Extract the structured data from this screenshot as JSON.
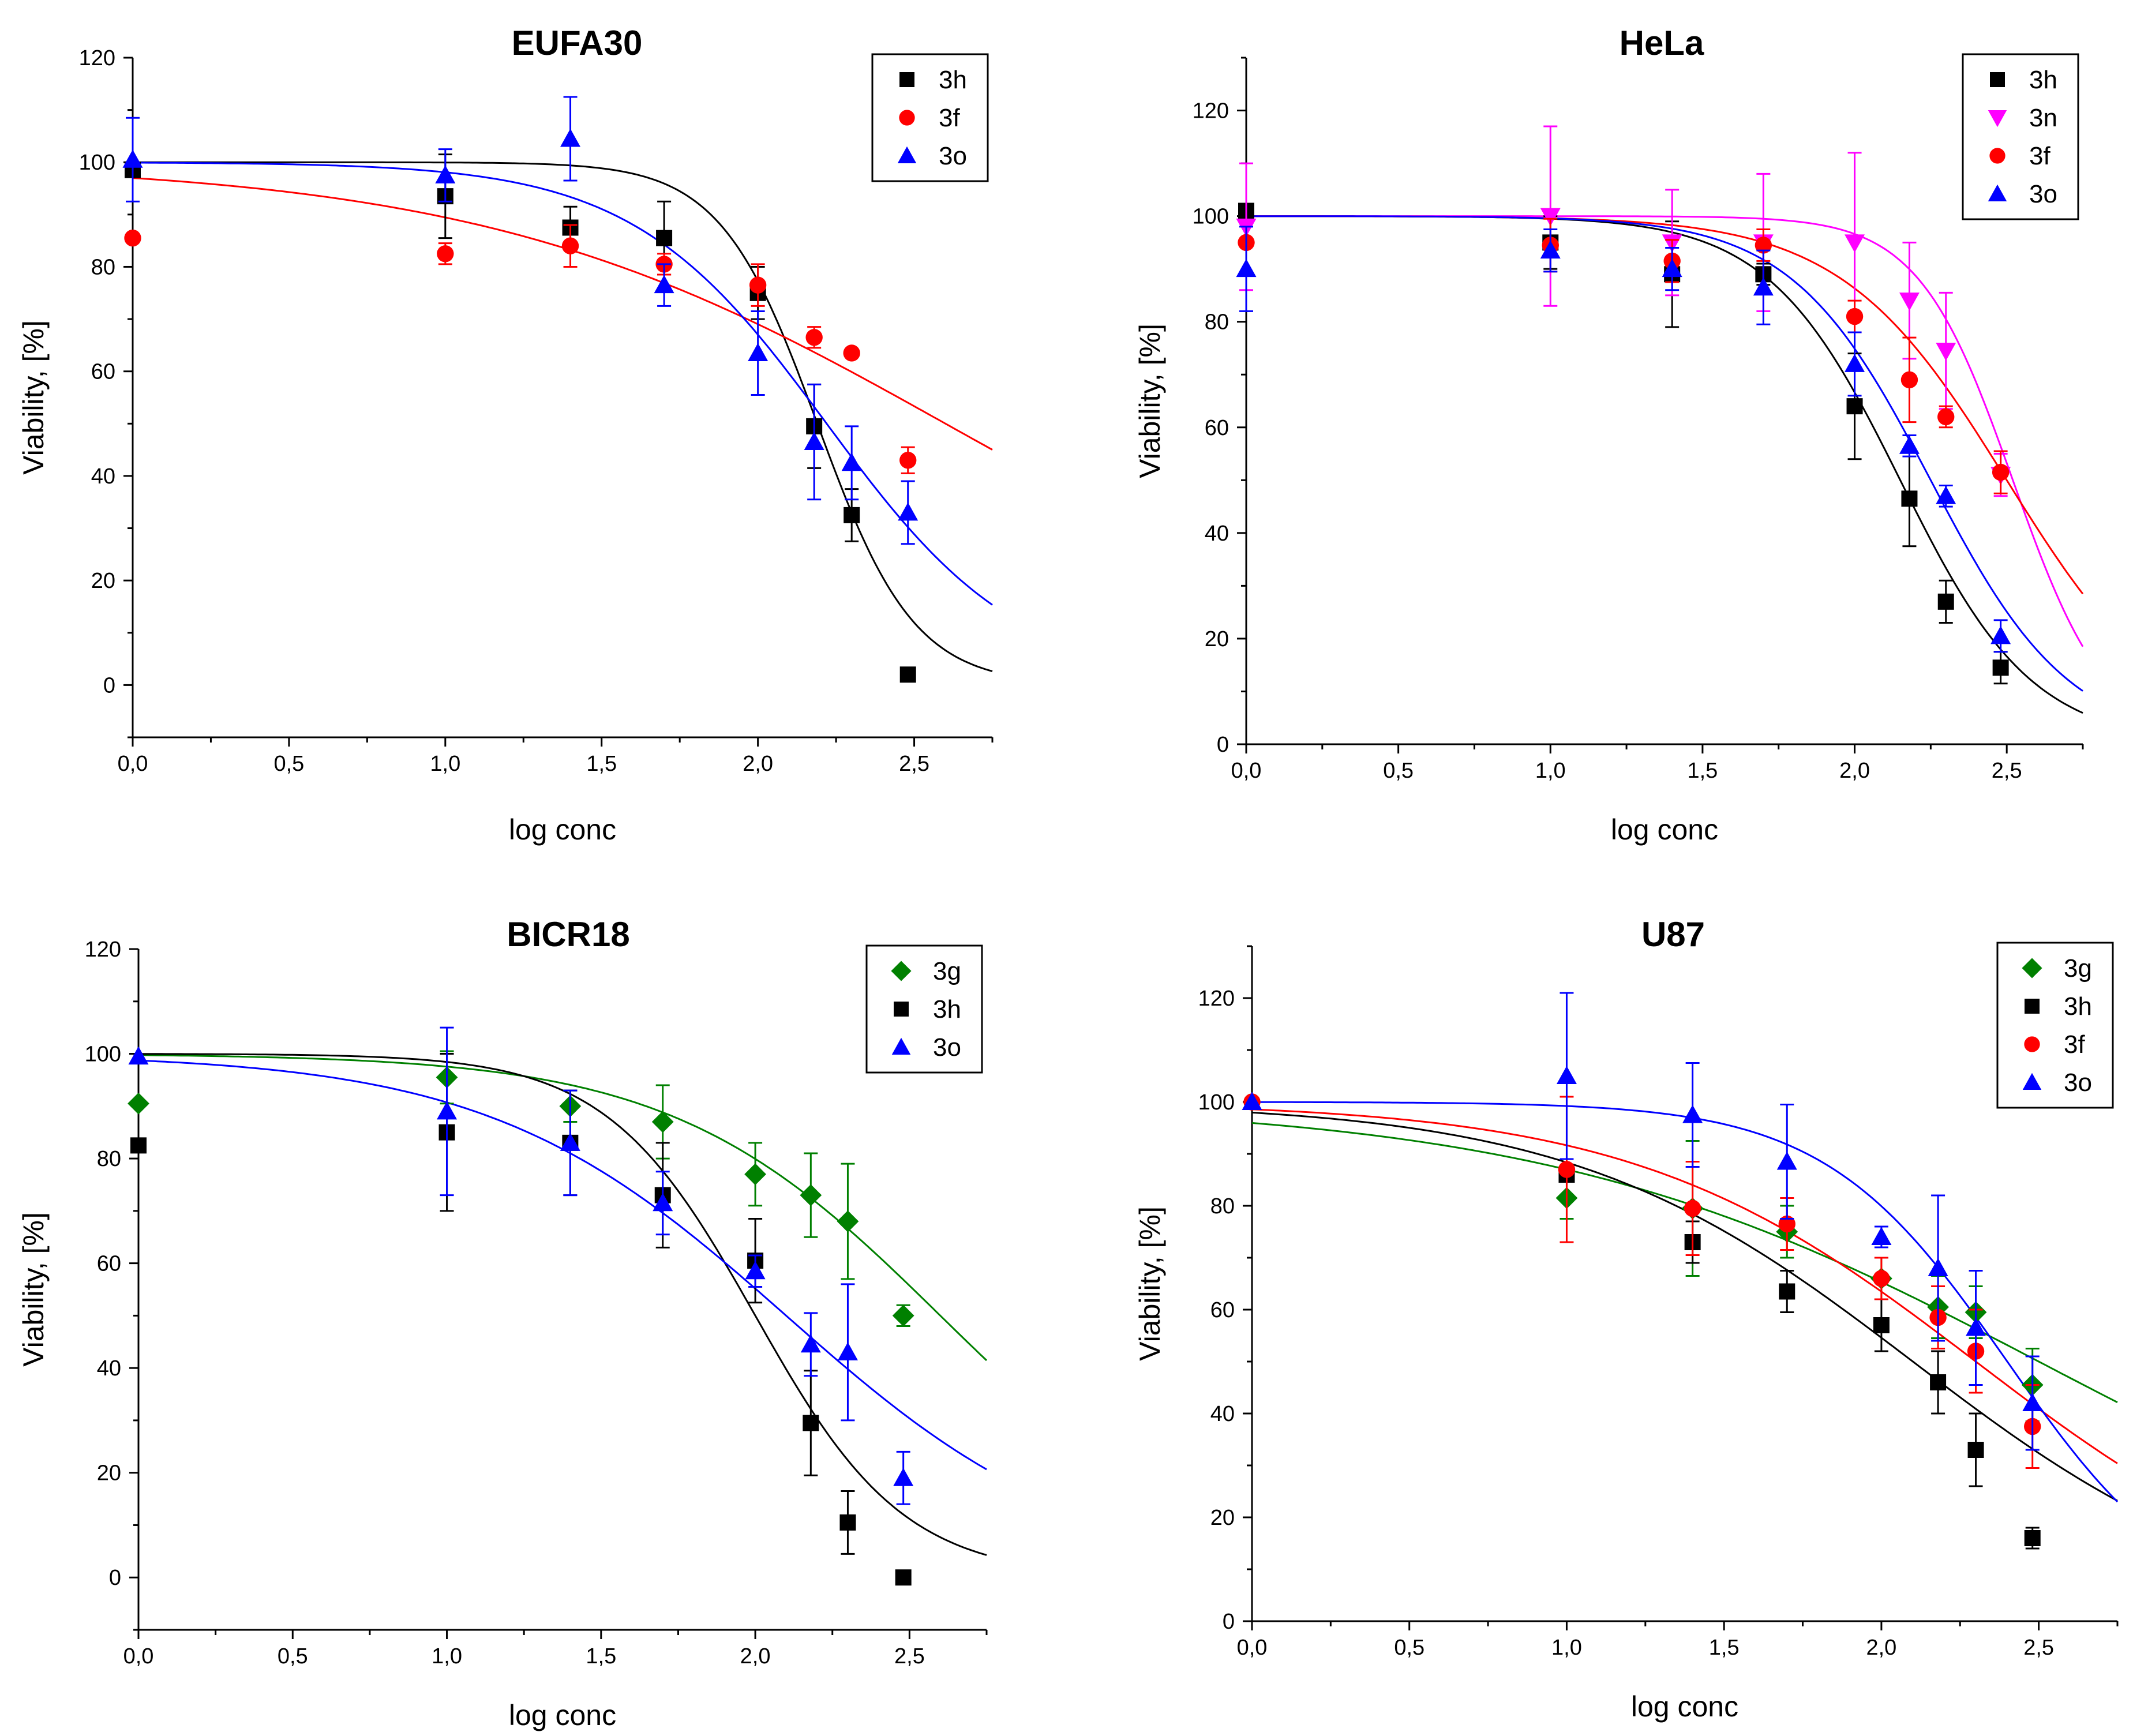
{
  "chart_data": [
    {
      "type": "scatter",
      "title": "EUFA30",
      "xlabel": "log conc",
      "ylabel": "Viability, [%]",
      "xlim": [
        0,
        2.75
      ],
      "ylim": [
        -10,
        120
      ],
      "xticks": [
        "0,0",
        "0,5",
        "1,0",
        "1,5",
        "2,0",
        "2,5"
      ],
      "xtick_values": [
        0,
        0.5,
        1,
        1.5,
        2,
        2.5
      ],
      "yticks": [
        "0",
        "20",
        "40",
        "60",
        "80",
        "100",
        "120"
      ],
      "ytick_values": [
        0,
        20,
        40,
        60,
        80,
        100,
        120
      ],
      "legend": "top-right",
      "series": [
        {
          "name": "3h",
          "marker": "square",
          "color": "#000000",
          "x": [
            0,
            1,
            1.4,
            1.7,
            2,
            2.18,
            2.3,
            2.48
          ],
          "y": [
            98.5,
            93.5,
            87.5,
            85.5,
            75,
            49.5,
            32.5,
            2
          ],
          "err": [
            0,
            8,
            4,
            7,
            5,
            8,
            5,
            0
          ],
          "fit": {
            "top": 100,
            "bottom": 0,
            "logic50": 2.19,
            "hill": 2.8
          }
        },
        {
          "name": "3f",
          "marker": "circle",
          "color": "#ff0000",
          "x": [
            0,
            1,
            1.4,
            1.7,
            2,
            2.18,
            2.3,
            2.48
          ],
          "y": [
            85.5,
            82.5,
            84,
            80.5,
            76.5,
            66.5,
            63.5,
            43
          ],
          "err": [
            0,
            2,
            4,
            2,
            4,
            2,
            0,
            2.5
          ],
          "fit": {
            "top": 100,
            "bottom": 0,
            "logic50": 2.6,
            "hill": 0.58
          }
        },
        {
          "name": "3o",
          "marker": "triangle",
          "color": "#0000ff",
          "x": [
            0,
            1,
            1.4,
            1.7,
            2,
            2.18,
            2.3,
            2.48
          ],
          "y": [
            100.5,
            97.5,
            104.5,
            76.5,
            63.5,
            46.5,
            42.5,
            33
          ],
          "err": [
            8,
            5,
            8,
            4,
            8,
            11,
            7,
            6
          ],
          "fit": {
            "top": 100,
            "bottom": 0,
            "logic50": 2.22,
            "hill": 1.4
          }
        }
      ]
    },
    {
      "type": "scatter",
      "title": "HeLa",
      "xlabel": "log conc",
      "ylabel": "Viability, [%]",
      "xlim": [
        0,
        2.75
      ],
      "ylim": [
        0,
        130
      ],
      "xticks": [
        "0,0",
        "0,5",
        "1,0",
        "1,5",
        "2,0",
        "2,5"
      ],
      "xtick_values": [
        0,
        0.5,
        1,
        1.5,
        2,
        2.5
      ],
      "yticks": [
        "0",
        "20",
        "40",
        "60",
        "80",
        "100",
        "120"
      ],
      "ytick_values": [
        0,
        20,
        40,
        60,
        80,
        100,
        120
      ],
      "legend": "top-right",
      "series": [
        {
          "name": "3h",
          "marker": "square",
          "color": "#000000",
          "x": [
            0,
            1,
            1.4,
            1.7,
            2,
            2.18,
            2.3,
            2.48
          ],
          "y": [
            101,
            95,
            89,
            89,
            64,
            46.5,
            27,
            14.5
          ],
          "err": [
            0,
            5,
            10,
            2,
            10,
            9,
            4,
            3
          ],
          "fit": {
            "top": 100,
            "bottom": 0,
            "logic50": 2.15,
            "hill": 2.0
          }
        },
        {
          "name": "3n",
          "marker": "triangle-down",
          "color": "#ff00ff",
          "x": [
            0,
            1,
            1.4,
            1.7,
            2,
            2.18,
            2.3,
            2.48
          ],
          "y": [
            98,
            100,
            95,
            95,
            95,
            84,
            74.5,
            51
          ],
          "err": [
            12,
            17,
            10,
            13,
            17,
            11,
            11,
            4
          ],
          "fit": {
            "top": 100,
            "bottom": 0,
            "logic50": 2.52,
            "hill": 2.8
          }
        },
        {
          "name": "3f",
          "marker": "circle",
          "color": "#ff0000",
          "x": [
            0,
            1,
            1.4,
            1.7,
            2,
            2.18,
            2.3,
            2.48
          ],
          "y": [
            95,
            94.5,
            91.5,
            94.5,
            81,
            69,
            62,
            51.5
          ],
          "err": [
            0,
            5,
            4,
            3,
            3,
            8,
            2,
            4
          ],
          "fit": {
            "top": 100,
            "bottom": 0,
            "logic50": 2.5,
            "hill": 1.6
          }
        },
        {
          "name": "3o",
          "marker": "triangle",
          "color": "#0000ff",
          "x": [
            0,
            1,
            1.4,
            1.7,
            2,
            2.18,
            2.3,
            2.48
          ],
          "y": [
            90,
            93.5,
            90,
            86.5,
            72,
            56.5,
            47,
            20.5
          ],
          "err": [
            8,
            4,
            4,
            7,
            6,
            2,
            2,
            3
          ],
          "fit": {
            "top": 100,
            "bottom": 0,
            "logic50": 2.25,
            "hill": 1.9
          }
        }
      ]
    },
    {
      "type": "scatter",
      "title": "BICR18",
      "xlabel": "log conc",
      "ylabel": "Viability, [%]",
      "xlim": [
        0,
        2.75
      ],
      "ylim": [
        -10,
        120
      ],
      "xticks": [
        "0,0",
        "0,5",
        "1,0",
        "1,5",
        "2,0",
        "2,5"
      ],
      "xtick_values": [
        0,
        0.5,
        1,
        1.5,
        2,
        2.5
      ],
      "yticks": [
        "0",
        "20",
        "40",
        "60",
        "80",
        "100",
        "120"
      ],
      "ytick_values": [
        0,
        20,
        40,
        60,
        80,
        100,
        120
      ],
      "legend": "top-right",
      "series": [
        {
          "name": "3g",
          "marker": "diamond",
          "color": "#008000",
          "x": [
            0,
            1,
            1.4,
            1.7,
            2,
            2.18,
            2.3,
            2.48
          ],
          "y": [
            90.5,
            95.5,
            90,
            87,
            77,
            73,
            68,
            50
          ],
          "err": [
            0,
            5,
            3,
            7,
            6,
            8,
            11,
            2
          ],
          "fit": {
            "top": 100,
            "bottom": 0,
            "logic50": 2.6,
            "hill": 1.0
          }
        },
        {
          "name": "3h",
          "marker": "square",
          "color": "#000000",
          "x": [
            0,
            1,
            1.4,
            1.7,
            2,
            2.18,
            2.3,
            2.48
          ],
          "y": [
            82.5,
            85,
            83,
            73,
            60.5,
            29.5,
            10.5,
            0
          ],
          "err": [
            0,
            15,
            10,
            10,
            8,
            10,
            6,
            0
          ],
          "fit": {
            "top": 100,
            "bottom": 0,
            "logic50": 2.0,
            "hill": 1.8
          }
        },
        {
          "name": "3o",
          "marker": "triangle",
          "color": "#0000ff",
          "x": [
            0,
            1,
            1.4,
            1.7,
            2,
            2.18,
            2.3,
            2.48
          ],
          "y": [
            99.5,
            89,
            83,
            71.5,
            58.5,
            44.5,
            43,
            19
          ],
          "err": [
            0,
            16,
            10,
            6,
            3,
            6,
            13,
            5
          ],
          "fit": {
            "top": 100,
            "bottom": 0,
            "logic50": 2.1,
            "hill": 0.9
          }
        }
      ]
    },
    {
      "type": "scatter",
      "title": "U87",
      "xlabel": "log conc",
      "ylabel": "Viability, [%]",
      "xlim": [
        0,
        2.75
      ],
      "ylim": [
        0,
        130
      ],
      "xticks": [
        "0,0",
        "0,5",
        "1,0",
        "1,5",
        "2,0",
        "2,5"
      ],
      "xtick_values": [
        0,
        0.5,
        1,
        1.5,
        2,
        2.5
      ],
      "yticks": [
        "0",
        "20",
        "40",
        "60",
        "80",
        "100",
        "120"
      ],
      "ytick_values": [
        0,
        20,
        40,
        60,
        80,
        100,
        120
      ],
      "legend": "top-right",
      "series": [
        {
          "name": "3g",
          "marker": "diamond",
          "color": "#008000",
          "x": [
            1,
            1.4,
            1.7,
            2,
            2.18,
            2.3,
            2.48
          ],
          "y": [
            81.5,
            79.5,
            75,
            66,
            60.5,
            59.5,
            45.5
          ],
          "err": [
            4,
            13,
            5,
            4,
            6,
            5,
            7
          ],
          "fit": {
            "top": 100,
            "bottom": 0,
            "logic50": 2.5,
            "hill": 0.55
          }
        },
        {
          "name": "3h",
          "marker": "square",
          "color": "#000000",
          "x": [
            1,
            1.4,
            1.7,
            2,
            2.18,
            2.3,
            2.48
          ],
          "y": [
            86,
            73,
            63.5,
            57,
            46,
            33,
            16
          ],
          "err": [
            0,
            4,
            4,
            5,
            6,
            7,
            2
          ],
          "fit": {
            "top": 100,
            "bottom": 0,
            "logic50": 2.1,
            "hill": 0.8
          }
        },
        {
          "name": "3f",
          "marker": "circle",
          "color": "#ff0000",
          "x": [
            0,
            1,
            1.4,
            1.7,
            2,
            2.18,
            2.3,
            2.48
          ],
          "y": [
            100,
            87,
            79.5,
            76.5,
            66,
            58.5,
            52,
            37.5
          ],
          "err": [
            0,
            14,
            9,
            5,
            4,
            6,
            8,
            8
          ],
          "fit": {
            "top": 100,
            "bottom": 0,
            "logic50": 2.3,
            "hill": 0.8
          }
        },
        {
          "name": "3o",
          "marker": "triangle",
          "color": "#0000ff",
          "x": [
            0,
            1,
            1.4,
            1.7,
            2,
            2.18,
            2.3,
            2.48
          ],
          "y": [
            100,
            105,
            97.5,
            88.5,
            74,
            68,
            56.5,
            42
          ],
          "err": [
            0,
            16,
            10,
            11,
            2,
            14,
            11,
            9
          ],
          "fit": {
            "top": 100,
            "bottom": 0,
            "logic50": 2.4,
            "hill": 1.5
          }
        }
      ]
    }
  ]
}
